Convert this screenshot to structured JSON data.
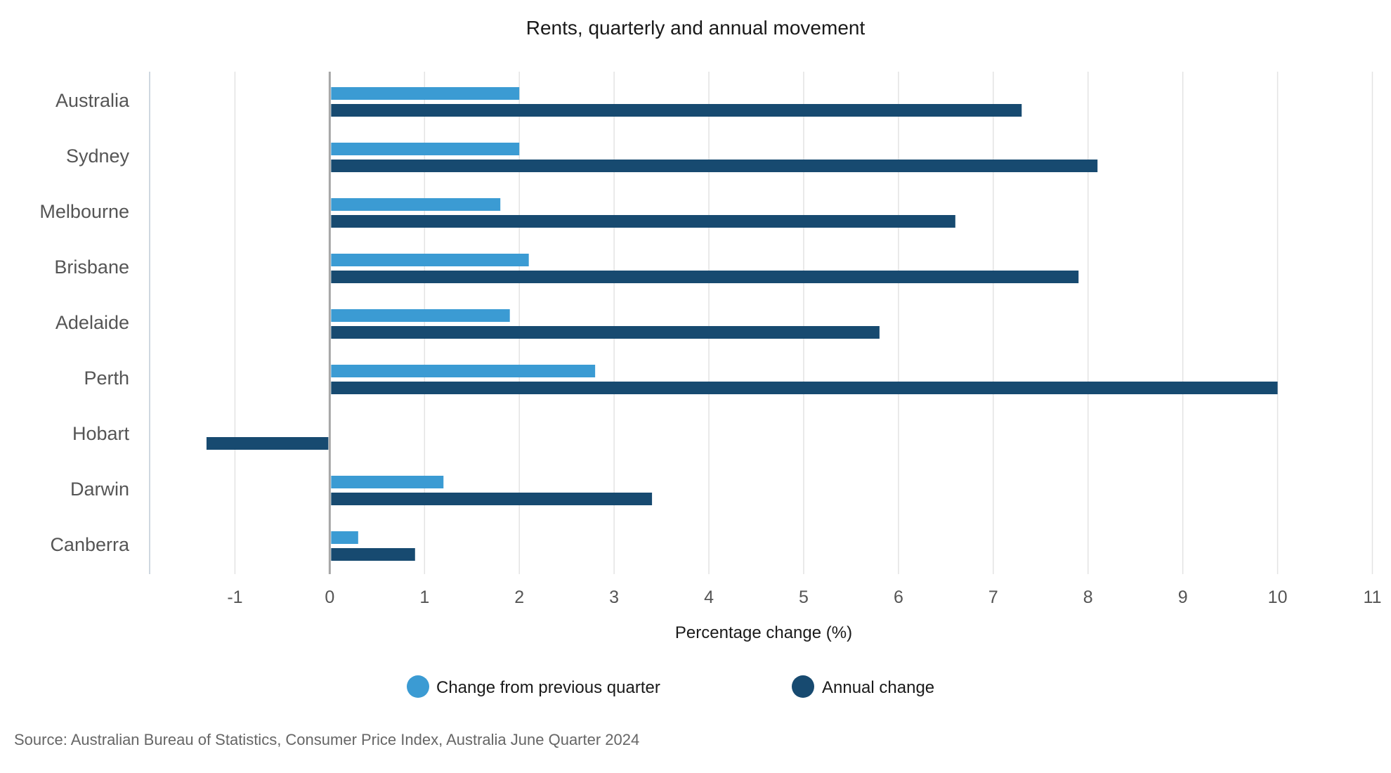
{
  "chart_data": {
    "type": "bar",
    "orientation": "horizontal",
    "title": "Rents, quarterly and annual movement",
    "xlabel": "Percentage change (%)",
    "ylabel": "",
    "categories": [
      "Australia",
      "Sydney",
      "Melbourne",
      "Brisbane",
      "Adelaide",
      "Perth",
      "Hobart",
      "Darwin",
      "Canberra"
    ],
    "series": [
      {
        "name": "Change from previous quarter",
        "color": "#3b9bd3",
        "values": [
          2.0,
          2.0,
          1.8,
          2.1,
          1.9,
          2.8,
          0.0,
          1.2,
          0.3
        ]
      },
      {
        "name": "Annual change",
        "color": "#174a70",
        "values": [
          7.3,
          8.1,
          6.6,
          7.9,
          5.8,
          10.0,
          -1.3,
          3.4,
          0.9
        ]
      }
    ],
    "xlim": [
      -1.9,
      11.1
    ],
    "xticks": [
      -1,
      0,
      1,
      2,
      3,
      4,
      5,
      6,
      7,
      8,
      9,
      10,
      11
    ],
    "grid": true,
    "legend_position": "bottom",
    "source": "Source: Australian Bureau of Statistics, Consumer Price Index, Australia June Quarter 2024"
  }
}
